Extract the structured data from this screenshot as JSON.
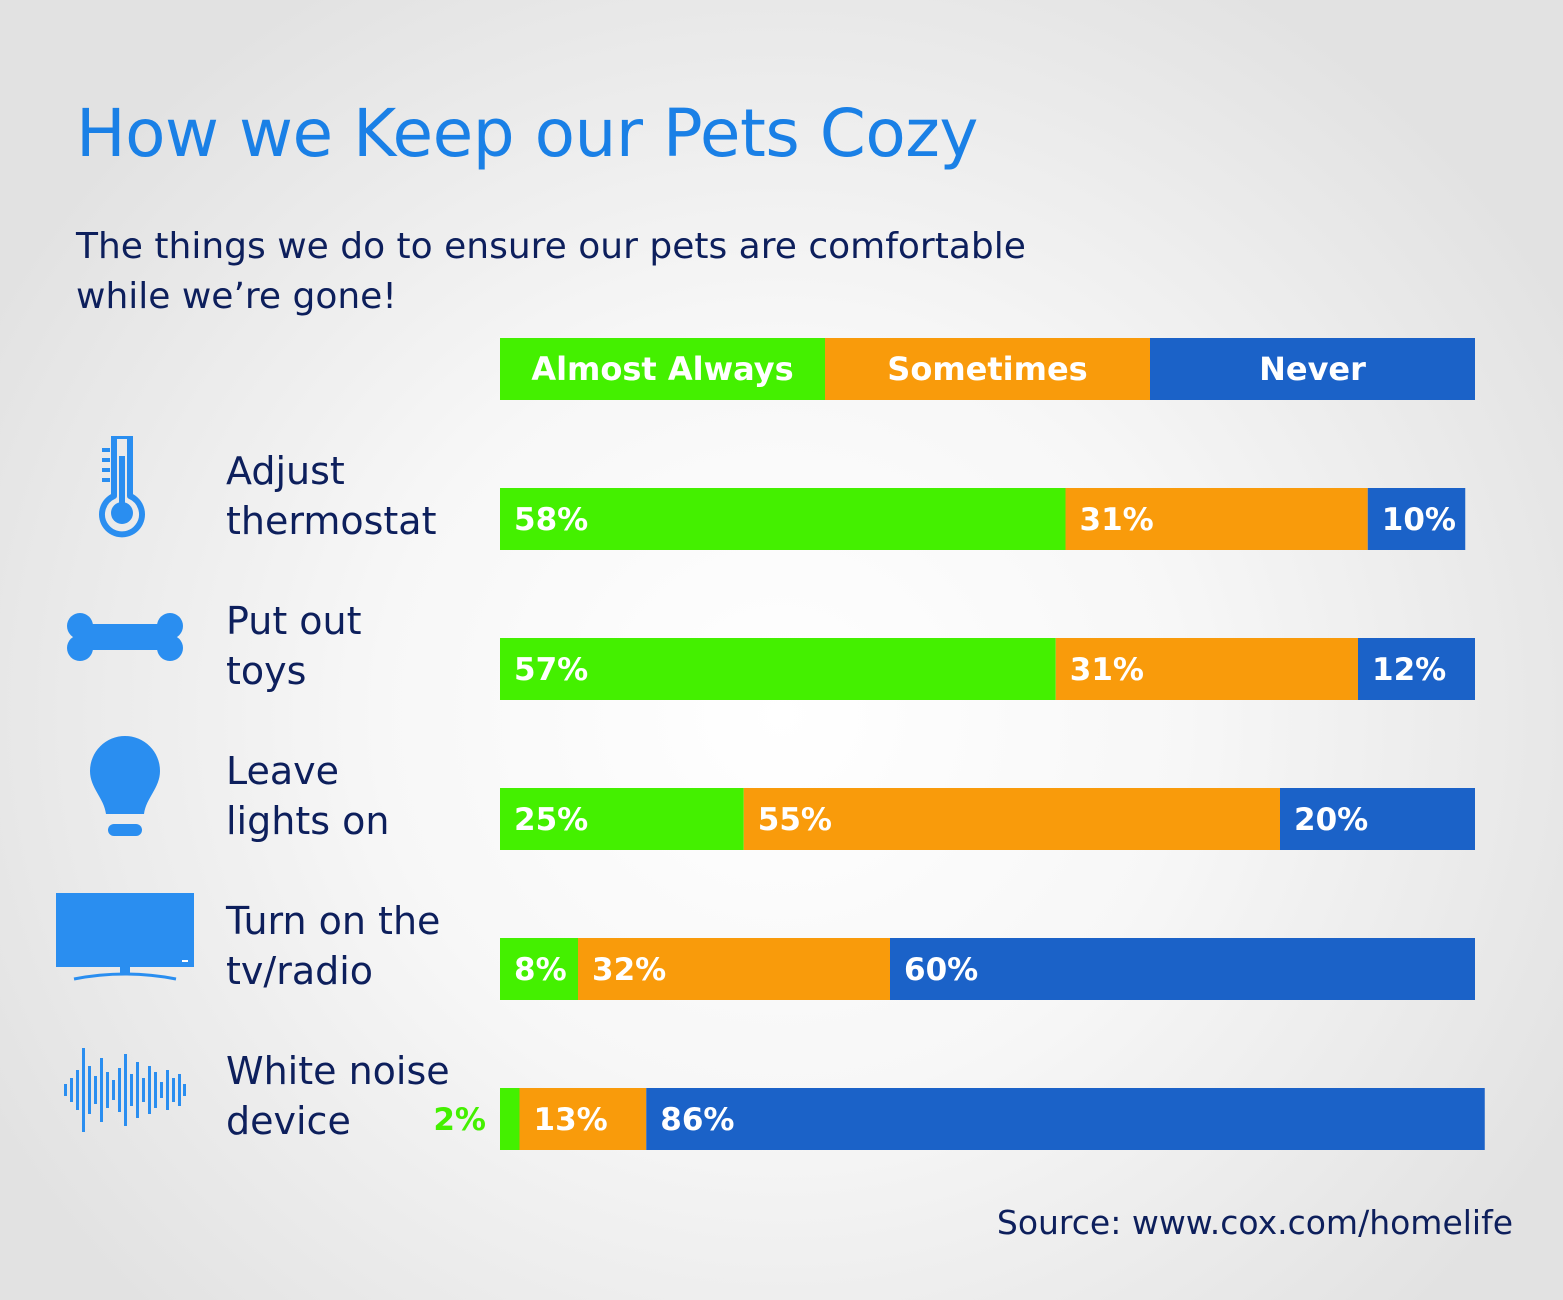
{
  "header": {
    "title": "How we Keep our Pets Cozy",
    "subtitle_line1": "The things we do to ensure our pets are comfortable",
    "subtitle_line2": "while we’re gone!"
  },
  "colors": {
    "title": "#1a80e6",
    "text": "#0d1f5c",
    "almost_always": "#44f000",
    "sometimes": "#f99b0b",
    "never": "#1b62c8",
    "icon": "#2a8ef0"
  },
  "rows": [
    {
      "label_line1": "Adjust",
      "label_line2": "thermostat",
      "icon": "thermometer-icon"
    },
    {
      "label_line1": "Put out",
      "label_line2": "toys",
      "icon": "bone-icon"
    },
    {
      "label_line1": "Leave",
      "label_line2": "lights on",
      "icon": "lightbulb-icon"
    },
    {
      "label_line1": "Turn on the",
      "label_line2": "tv/radio",
      "icon": "tv-icon"
    },
    {
      "label_line1": "White noise",
      "label_line2": "device",
      "icon": "sound-wave-icon"
    }
  ],
  "chart_data": {
    "type": "bar",
    "orientation": "horizontal",
    "stacked": true,
    "categories": [
      "Adjust thermostat",
      "Put out toys",
      "Leave lights on",
      "Turn on the tv/radio",
      "White noise device"
    ],
    "series": [
      {
        "name": "Almost Always",
        "values": [
          58,
          57,
          25,
          8,
          2
        ],
        "labels": [
          "58%",
          "57%",
          "25%",
          "8%",
          "2%"
        ]
      },
      {
        "name": "Sometimes",
        "values": [
          31,
          31,
          55,
          32,
          13
        ],
        "labels": [
          "31%",
          "31%",
          "55%",
          "32%",
          "13%"
        ]
      },
      {
        "name": "Never",
        "values": [
          10,
          12,
          20,
          60,
          86
        ],
        "labels": [
          "10%",
          "12%",
          "20%",
          "60%",
          "86%"
        ]
      }
    ],
    "legend_position": "top"
  },
  "source": "Source: www.cox.com/homelife"
}
